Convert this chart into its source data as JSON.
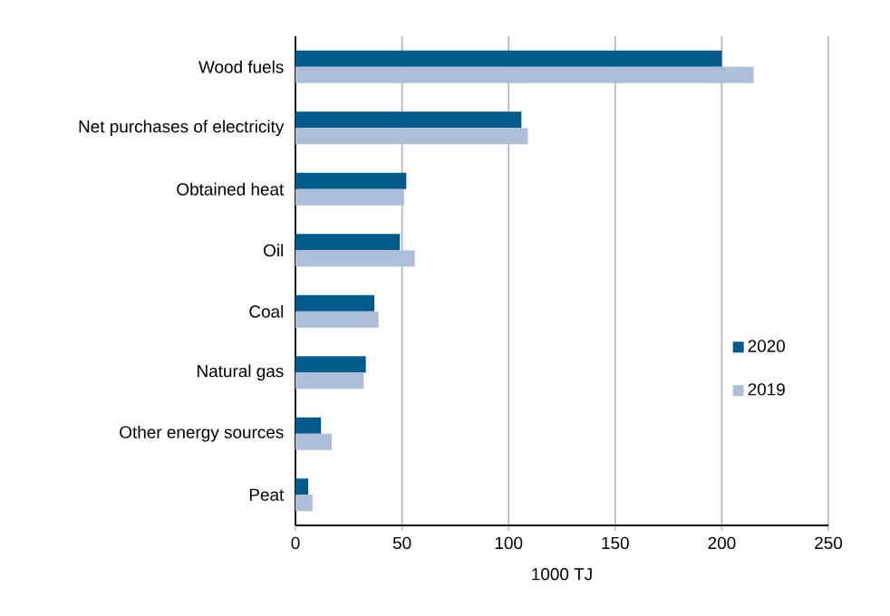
{
  "chart_data": {
    "type": "bar",
    "orientation": "horizontal",
    "xlabel": "1000 TJ",
    "categories": [
      "Wood fuels",
      "Net purchases of electricity",
      "Obtained heat",
      "Oil",
      "Coal",
      "Natural gas",
      "Other energy sources",
      "Peat"
    ],
    "series": [
      {
        "name": "2020",
        "color": "#005a8a",
        "values": [
          200,
          106,
          52,
          49,
          37,
          33,
          12,
          6
        ]
      },
      {
        "name": "2019",
        "color": "#adbfd8",
        "values": [
          215,
          109,
          51,
          56,
          39,
          32,
          17,
          8
        ]
      }
    ],
    "xlim": [
      0,
      250
    ],
    "xticks": [
      0,
      50,
      100,
      150,
      200,
      250
    ],
    "grid": "x",
    "legend": "right"
  }
}
